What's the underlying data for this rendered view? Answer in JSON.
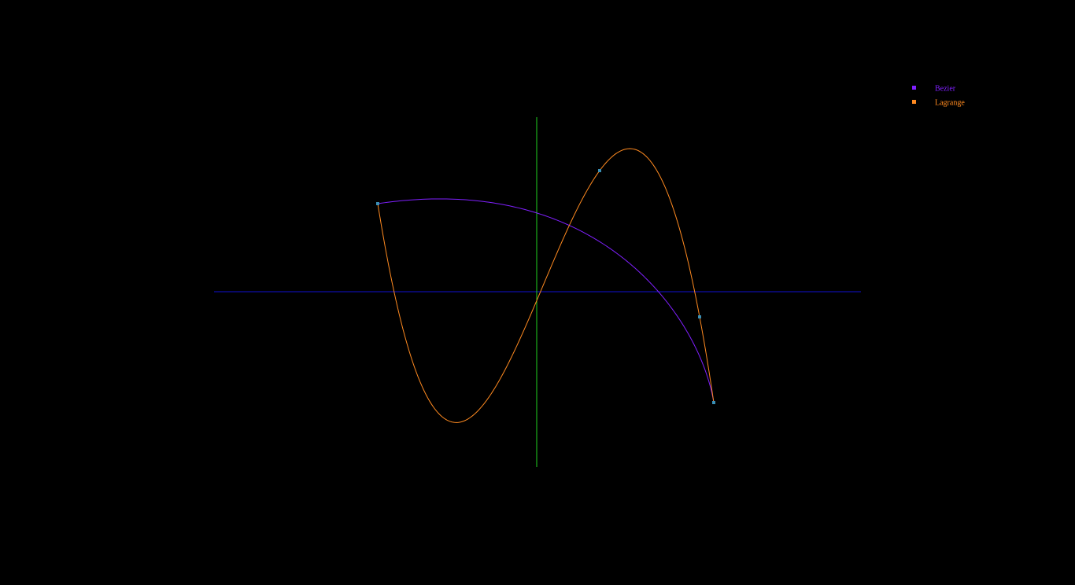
{
  "chart_data": {
    "type": "curves",
    "xlim": [
      -410,
      412
    ],
    "ylim": [
      -223,
      222
    ],
    "x": [
      -202,
      80,
      207,
      225
    ],
    "values": [
      112,
      154,
      -32,
      -141
    ],
    "point_color": "#3a8fb5",
    "x_axis_color": "#1010d0",
    "y_axis_color": "#20d020",
    "series": [
      {
        "name": "Bezier",
        "color": "#8020ff"
      },
      {
        "name": "Lagrange",
        "color": "#ff8a20"
      }
    ]
  }
}
